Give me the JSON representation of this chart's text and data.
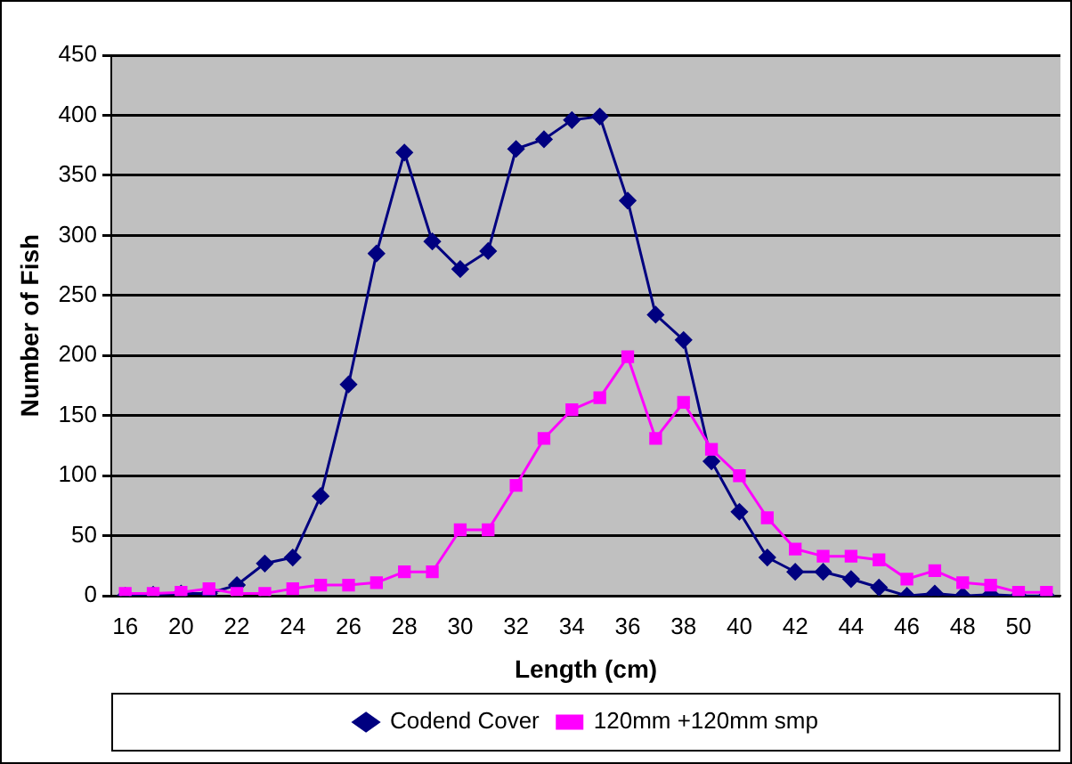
{
  "chart_data": {
    "type": "line",
    "xlabel": "Length (cm)",
    "ylabel": "Number of Fish",
    "categories": [
      "16",
      null,
      "20",
      null,
      "22",
      null,
      "24",
      null,
      "26",
      null,
      "28",
      null,
      "30",
      null,
      "32",
      null,
      "34",
      null,
      "36",
      null,
      "38",
      null,
      "40",
      null,
      "42",
      null,
      "44",
      null,
      "46",
      null,
      "48",
      null,
      "50",
      null
    ],
    "series": [
      {
        "name": "Codend Cover",
        "color": "#000080",
        "marker": "diamond",
        "values": [
          0,
          1,
          2,
          2,
          9,
          27,
          32,
          83,
          176,
          285,
          369,
          295,
          272,
          287,
          372,
          380,
          396,
          399,
          329,
          234,
          213,
          112,
          70,
          32,
          20,
          20,
          14,
          7,
          0,
          2,
          0,
          1,
          0,
          0
        ]
      },
      {
        "name": "120mm +120mm smp",
        "color": "#ff00ff",
        "marker": "square",
        "values": [
          2,
          2,
          3,
          6,
          2,
          2,
          6,
          9,
          9,
          11,
          20,
          20,
          55,
          55,
          92,
          131,
          155,
          165,
          199,
          131,
          161,
          122,
          100,
          65,
          39,
          33,
          33,
          30,
          14,
          21,
          11,
          9,
          3,
          3
        ]
      }
    ],
    "ylim": [
      0,
      450
    ],
    "yticks": [
      0,
      50,
      100,
      150,
      200,
      250,
      300,
      350,
      400,
      450
    ],
    "grid": "y",
    "legend": "bottom",
    "line_style": "solid"
  }
}
